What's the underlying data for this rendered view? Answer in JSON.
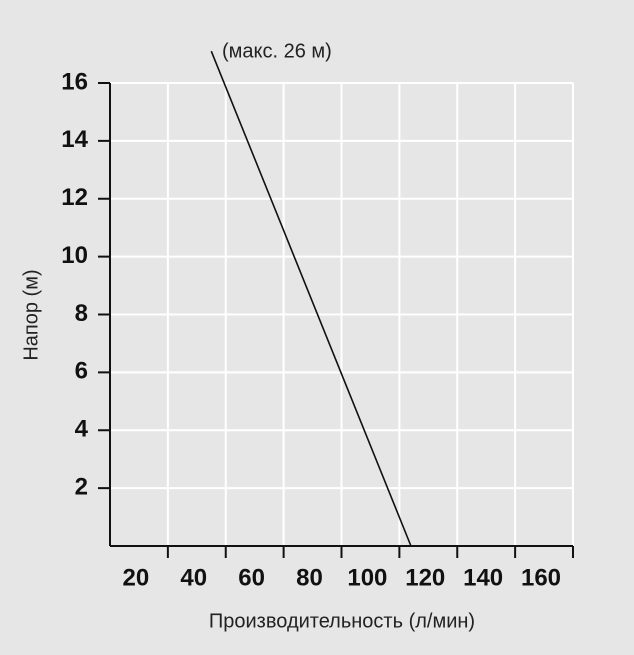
{
  "chart_data": {
    "type": "line",
    "x_label": "Производительность (л/мин)",
    "y_label": "Напор (м)",
    "annotation": "(макс. 26 м)",
    "x": [
      35,
      104
    ],
    "series": [
      {
        "name": null,
        "color": "#111111",
        "values": [
          17.1,
          0
        ]
      }
    ],
    "xlim": [
      0,
      160
    ],
    "xticks": [
      20,
      40,
      60,
      80,
      100,
      120,
      140,
      160
    ],
    "ylim": [
      0,
      16
    ],
    "yticks": [
      2,
      4,
      6,
      8,
      10,
      12,
      14,
      16
    ],
    "grid": true
  }
}
